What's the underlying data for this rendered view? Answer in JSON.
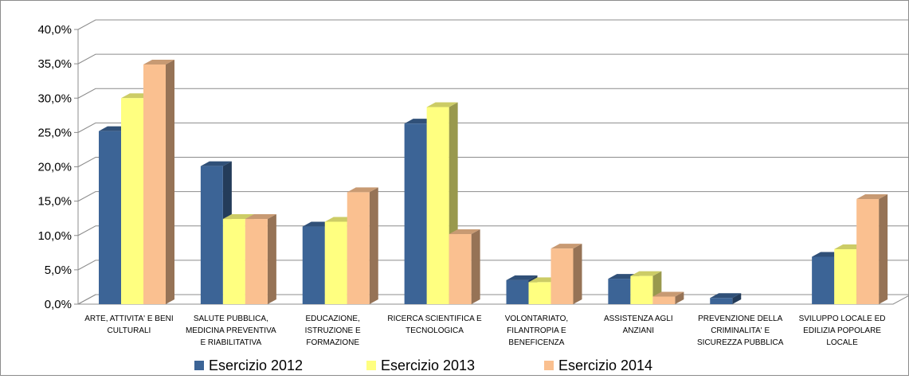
{
  "chart_data": {
    "type": "bar",
    "title": "",
    "xlabel": "",
    "ylabel": "",
    "ylim": [
      0,
      40
    ],
    "y_ticks": [
      "0,0%",
      "5,0%",
      "10,0%",
      "15,0%",
      "20,0%",
      "25,0%",
      "30,0%",
      "35,0%",
      "40,0%"
    ],
    "grid": true,
    "legend_position": "bottom",
    "categories": [
      [
        "ARTE, ATTIVITA' E BENI",
        "CULTURALI"
      ],
      [
        "SALUTE PUBBLICA,",
        "MEDICINA PREVENTIVA",
        "E RIABILITATIVA"
      ],
      [
        "EDUCAZIONE,",
        "ISTRUZIONE E",
        "FORMAZIONE"
      ],
      [
        "RICERCA SCIENTIFICA E",
        "TECNOLOGICA"
      ],
      [
        "VOLONTARIATO,",
        "FILANTROPIA E",
        "BENEFICENZA"
      ],
      [
        "ASSISTENZA AGLI",
        "ANZIANI"
      ],
      [
        "PREVENZIONE DELLA",
        "CRIMINALITA' E",
        "SICUREZZA PUBBLICA"
      ],
      [
        "SVILUPPO LOCALE ED",
        "EDILIZIA POPOLARE",
        "LOCALE"
      ]
    ],
    "series": [
      {
        "name": "Esercizio 2012",
        "color": "#3c6496",
        "values": [
          25.2,
          20.1,
          11.3,
          26.3,
          3.5,
          3.7,
          0.9,
          6.9
        ]
      },
      {
        "name": "Esercizio 2013",
        "color": "#ffff80",
        "values": [
          30.0,
          12.4,
          12.0,
          28.7,
          3.2,
          4.1,
          0.0,
          8.0
        ]
      },
      {
        "name": "Esercizio 2014",
        "color": "#fac090",
        "values": [
          34.9,
          12.4,
          16.3,
          10.2,
          8.1,
          1.1,
          0.0,
          15.3
        ]
      }
    ]
  }
}
